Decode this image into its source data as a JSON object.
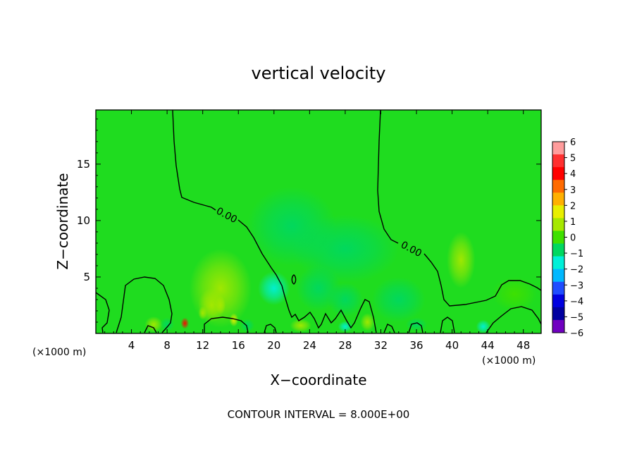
{
  "chart_data": {
    "type": "heatmap",
    "title": "vertical velocity",
    "xlabel": "X−coordinate",
    "ylabel": "Z−coordinate",
    "x_unit": "(×1000 m)",
    "x_unit_right": "(×1000 m)",
    "xlim": [
      0,
      50
    ],
    "ylim": [
      0,
      19.8
    ],
    "x_ticks": [
      4,
      8,
      12,
      16,
      20,
      24,
      28,
      32,
      36,
      40,
      44,
      48
    ],
    "x_tick_labels": [
      "4",
      "8",
      "12",
      "16",
      "20",
      "24",
      "28",
      "32",
      "36",
      "40",
      "44",
      "48"
    ],
    "y_ticks": [
      5,
      10,
      15
    ],
    "y_tick_labels": [
      "5",
      "10",
      "15"
    ],
    "contour_labels": [
      "0.00",
      "0.00"
    ],
    "colorbar": {
      "levels": [
        6,
        5,
        4,
        3,
        2,
        1,
        0,
        -1,
        -2,
        -3,
        -4,
        -5,
        -6
      ],
      "labels": [
        "6",
        "5",
        "4",
        "3",
        "2",
        "1",
        "0",
        "−1",
        "−2",
        "−3",
        "−4",
        "−5",
        "−6"
      ],
      "colors": [
        "#ff9c9c",
        "#ff3030",
        "#ff0000",
        "#ff6a00",
        "#ffb000",
        "#e8ef00",
        "#a6e800",
        "#3fe000",
        "#00d860",
        "#00f0d8",
        "#00b8ff",
        "#1f4dff",
        "#0000e0",
        "#0000a0",
        "#7000c0"
      ]
    },
    "footer": "CONTOUR INTERVAL = 8.000E+00",
    "background_color": "#1fdc1f",
    "features": [
      {
        "kind": "updraft",
        "x": 14,
        "z": 4,
        "sx": 3.5,
        "sz": 3.5,
        "value": 0.8
      },
      {
        "kind": "updraft",
        "x": 13,
        "z": 2.5,
        "sx": 1.5,
        "sz": 1.5,
        "value": 0.8
      },
      {
        "kind": "updraft",
        "x": 10,
        "z": 0.9,
        "sx": 0.45,
        "sz": 0.5,
        "value": 4.2
      },
      {
        "kind": "updraft",
        "x": 15.5,
        "z": 1.2,
        "sx": 0.5,
        "sz": 0.6,
        "value": 2.0
      },
      {
        "kind": "updraft",
        "x": 12,
        "z": 1.8,
        "sx": 0.5,
        "sz": 0.6,
        "value": 1.0
      },
      {
        "kind": "updraft",
        "x": 14,
        "z": 2.5,
        "sx": 0.6,
        "sz": 0.8,
        "value": 1.0
      },
      {
        "kind": "updraft",
        "x": 6.5,
        "z": 0.8,
        "sx": 1.0,
        "sz": 0.7,
        "value": 0.6
      },
      {
        "kind": "updraft",
        "x": 23,
        "z": 0.7,
        "sx": 1.2,
        "sz": 0.6,
        "value": 0.6
      },
      {
        "kind": "updraft",
        "x": 30.5,
        "z": 1.0,
        "sx": 0.8,
        "sz": 0.8,
        "value": 0.8
      },
      {
        "kind": "updraft",
        "x": 41,
        "z": 6.5,
        "sx": 1.6,
        "sz": 2.5,
        "value": 0.4
      },
      {
        "kind": "updraft",
        "x": 47,
        "z": 3.5,
        "sx": 2.5,
        "sz": 1.5,
        "value": 0.3
      },
      {
        "kind": "downdraft",
        "x": 22,
        "z": 9.5,
        "sx": 5,
        "sz": 3.5,
        "value": -0.5
      },
      {
        "kind": "downdraft",
        "x": 28,
        "z": 7.5,
        "sx": 6,
        "sz": 3,
        "value": -0.5
      },
      {
        "kind": "downdraft",
        "x": 20,
        "z": 4,
        "sx": 1.8,
        "sz": 1.5,
        "value": -1.2
      },
      {
        "kind": "downdraft",
        "x": 25,
        "z": 4,
        "sx": 2.5,
        "sz": 2,
        "value": -1.0
      },
      {
        "kind": "downdraft",
        "x": 28,
        "z": 3,
        "sx": 2.0,
        "sz": 1.5,
        "value": -1.0
      },
      {
        "kind": "downdraft",
        "x": 34,
        "z": 3,
        "sx": 3,
        "sz": 2,
        "value": -0.6
      },
      {
        "kind": "downdraft",
        "x": 43.5,
        "z": 0.6,
        "sx": 0.8,
        "sz": 0.6,
        "value": -1.5
      },
      {
        "kind": "downdraft",
        "x": 8,
        "z": 0.8,
        "sx": 0.8,
        "sz": 0.6,
        "value": -0.8
      },
      {
        "kind": "downdraft",
        "x": 17,
        "z": 0.7,
        "sx": 0.8,
        "sz": 0.6,
        "value": -1.0
      },
      {
        "kind": "downdraft",
        "x": 28,
        "z": 0.6,
        "sx": 0.8,
        "sz": 0.5,
        "value": -1.2
      },
      {
        "kind": "downdraft",
        "x": 36,
        "z": 0.8,
        "sx": 1.2,
        "sz": 0.6,
        "value": -0.8
      }
    ]
  }
}
